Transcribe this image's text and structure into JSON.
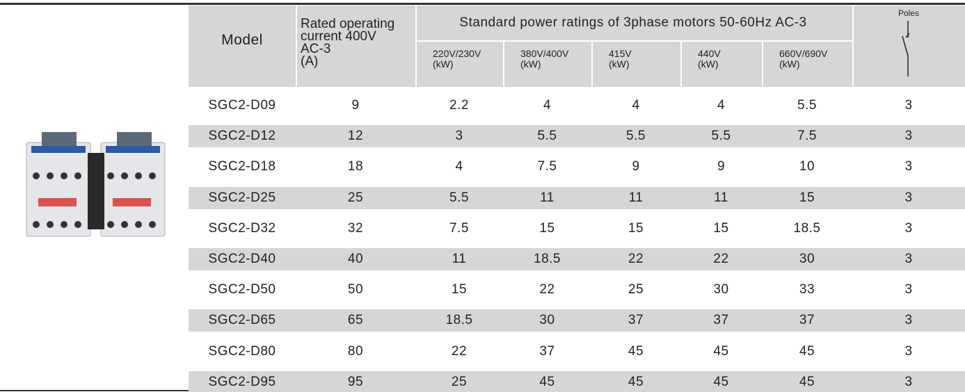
{
  "header": {
    "model": "Model",
    "current": [
      "Rated operating",
      "current 400V",
      "AC-3",
      "(A)"
    ],
    "power_group": "Standard power ratings of 3phase motors  50-60Hz AC-3",
    "power_columns": [
      [
        "220V/230V",
        "(kW)"
      ],
      [
        "380V/400V",
        "(kW)"
      ],
      [
        "415V",
        "(kW)"
      ],
      [
        "440V",
        "(kW)"
      ],
      [
        "660V/690V",
        "(kW)"
      ]
    ],
    "poles": "Poles"
  },
  "table": {
    "rows": [
      [
        "SGC2-D09",
        9,
        2.2,
        4,
        4,
        4,
        5.5,
        3
      ],
      [
        "SGC2-D12",
        12,
        3,
        5.5,
        5.5,
        5.5,
        7.5,
        3
      ],
      [
        "SGC2-D18",
        18,
        4,
        7.5,
        9,
        9,
        10,
        3
      ],
      [
        "SGC2-D25",
        25,
        5.5,
        11,
        11,
        11,
        15,
        3
      ],
      [
        "SGC2-D32",
        32,
        7.5,
        15,
        15,
        15,
        18.5,
        3
      ],
      [
        "SGC2-D40",
        40,
        11,
        18.5,
        22,
        22,
        30,
        3
      ],
      [
        "SGC2-D50",
        50,
        15,
        22,
        25,
        30,
        33,
        3
      ],
      [
        "SGC2-D65",
        65,
        18.5,
        30,
        37,
        37,
        37,
        3
      ],
      [
        "SGC2-D80",
        80,
        22,
        37,
        45,
        45,
        45,
        3
      ],
      [
        "SGC2-D95",
        95,
        25,
        45,
        45,
        45,
        45,
        3
      ]
    ]
  }
}
